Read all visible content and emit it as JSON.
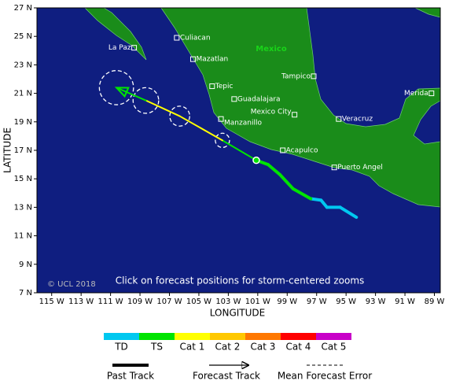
{
  "map": {
    "lon_range": [
      116,
      88.6
    ],
    "lat_range": [
      7,
      27
    ],
    "lon_ticks": [
      {
        "value": 115,
        "label": "115 W"
      },
      {
        "value": 113,
        "label": "113 W"
      },
      {
        "value": 111,
        "label": "111 W"
      },
      {
        "value": 109,
        "label": "109 W"
      },
      {
        "value": 107,
        "label": "107 W"
      },
      {
        "value": 105,
        "label": "105 W"
      },
      {
        "value": 103,
        "label": "103 W"
      },
      {
        "value": 101,
        "label": "101 W"
      },
      {
        "value": 99,
        "label": "99 W"
      },
      {
        "value": 97,
        "label": "97 W"
      },
      {
        "value": 95,
        "label": "95 W"
      },
      {
        "value": 93,
        "label": "93 W"
      },
      {
        "value": 91,
        "label": "91 W"
      },
      {
        "value": 89,
        "label": "89 W"
      }
    ],
    "lat_ticks": [
      {
        "value": 27,
        "label": "27 N"
      },
      {
        "value": 25,
        "label": "25 N"
      },
      {
        "value": 23,
        "label": "23 N"
      },
      {
        "value": 21,
        "label": "21 N"
      },
      {
        "value": 19,
        "label": "19 N"
      },
      {
        "value": 17,
        "label": "17 N"
      },
      {
        "value": 15,
        "label": "15 N"
      },
      {
        "value": 13,
        "label": "13 N"
      },
      {
        "value": 11,
        "label": "11 N"
      },
      {
        "value": 9,
        "label": "9 N"
      },
      {
        "value": 7,
        "label": "7 N"
      }
    ],
    "x_title": "LONGITUDE",
    "y_title": "LATITUDE",
    "country_label": "Mexico",
    "copyright": "© UCL 2018",
    "note": "Click on forecast positions for storm-centered zooms",
    "cities": [
      {
        "name": "Culiacan",
        "lon": 106.5,
        "lat": 24.9
      },
      {
        "name": "La Paz",
        "lon": 109.4,
        "lat": 24.2
      },
      {
        "name": "Mazatlan",
        "lon": 105.4,
        "lat": 23.4
      },
      {
        "name": "Tepic",
        "lon": 104.1,
        "lat": 21.5
      },
      {
        "name": "Guadalajara",
        "lon": 102.6,
        "lat": 20.6
      },
      {
        "name": "Manzanillo",
        "lon": 103.5,
        "lat": 19.2
      },
      {
        "name": "Mexico City",
        "lon": 98.5,
        "lat": 19.5
      },
      {
        "name": "Veracruz",
        "lon": 95.5,
        "lat": 19.2
      },
      {
        "name": "Tampico",
        "lon": 97.2,
        "lat": 22.2
      },
      {
        "name": "Merida",
        "lon": 89.2,
        "lat": 21.0
      },
      {
        "name": "Acapulco",
        "lon": 99.3,
        "lat": 17.0
      },
      {
        "name": "Puerto Angel",
        "lon": 95.8,
        "lat": 15.8
      }
    ],
    "past_track": [
      {
        "lon": 94.3,
        "lat": 12.3,
        "category": "TD"
      },
      {
        "lon": 95.4,
        "lat": 13.0,
        "category": "TD"
      },
      {
        "lon": 96.3,
        "lat": 13.0,
        "category": "TD"
      },
      {
        "lon": 96.7,
        "lat": 13.5,
        "category": "TD"
      },
      {
        "lon": 97.4,
        "lat": 13.6,
        "category": "TD"
      },
      {
        "lon": 98.6,
        "lat": 14.3,
        "category": "TS"
      },
      {
        "lon": 99.5,
        "lat": 15.3,
        "category": "TS"
      },
      {
        "lon": 100.3,
        "lat": 16.0,
        "category": "TS"
      },
      {
        "lon": 101.1,
        "lat": 16.3,
        "category": "TS"
      }
    ],
    "forecast_track": [
      {
        "lon": 101.1,
        "lat": 16.3,
        "category": "TS"
      },
      {
        "lon": 103.4,
        "lat": 17.7,
        "category": "TS",
        "error_deg": 0.5
      },
      {
        "lon": 106.3,
        "lat": 19.4,
        "category": "Cat 1",
        "error_deg": 0.7
      },
      {
        "lon": 108.6,
        "lat": 20.5,
        "category": "Cat 1",
        "error_deg": 0.9
      },
      {
        "lon": 110.6,
        "lat": 21.4,
        "category": "TS",
        "error_deg": 1.2
      }
    ],
    "categories": [
      {
        "name": "TD",
        "color": "#00c8f0"
      },
      {
        "name": "TS",
        "color": "#00e400"
      },
      {
        "name": "Cat 1",
        "color": "#ffff00"
      },
      {
        "name": "Cat 2",
        "color": "#ffc800"
      },
      {
        "name": "Cat 3",
        "color": "#ff7800"
      },
      {
        "name": "Cat 4",
        "color": "#ff0000"
      },
      {
        "name": "Cat 5",
        "color": "#c800c8"
      }
    ],
    "key": {
      "past": "Past Track",
      "forecast": "Forecast Track",
      "error": "Mean Forecast Error"
    }
  }
}
